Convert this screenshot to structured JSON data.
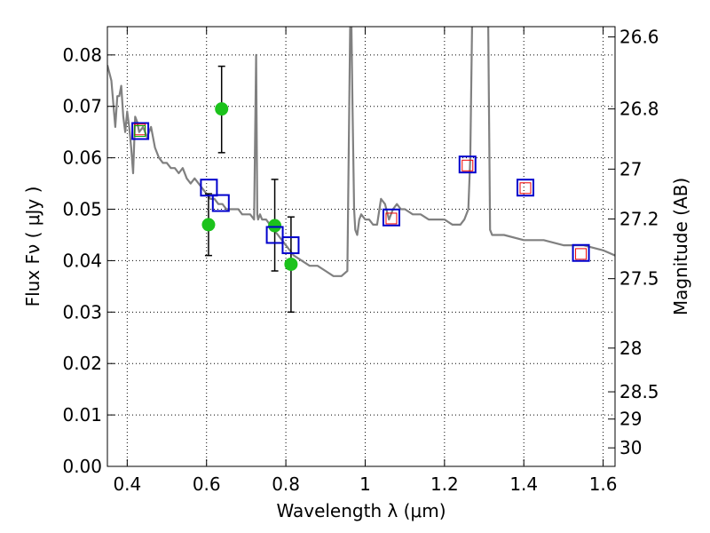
{
  "chart_data": {
    "type": "scatter",
    "xlabel": "Wavelength  λ (μm)",
    "ylabel": "Flux  Fν  ( μJy )",
    "y2label": "Magnitude (AB)",
    "xlim": [
      0.35,
      1.63
    ],
    "ylim": [
      0.0,
      0.0855
    ],
    "grid": true,
    "x_ticks": [
      0.4,
      0.6,
      0.8,
      1.0,
      1.2,
      1.4,
      1.6
    ],
    "x_tick_labels": [
      "0.4",
      "0.6",
      "0.8",
      "1",
      "1.2",
      "1.4",
      "1.6"
    ],
    "y_ticks": [
      0.0,
      0.01,
      0.02,
      0.03,
      0.04,
      0.05,
      0.06,
      0.07,
      0.08
    ],
    "y_tick_labels": [
      "0.00",
      "0.01",
      "0.02",
      "0.03",
      "0.04",
      "0.05",
      "0.06",
      "0.07",
      "0.08"
    ],
    "y2_ticks": [
      {
        "mag": "26.6",
        "flux": 0.0835
      },
      {
        "mag": "26.8",
        "flux": 0.0695
      },
      {
        "mag": "27",
        "flux": 0.0578
      },
      {
        "mag": "27.2",
        "flux": 0.0481
      },
      {
        "mag": "27.5",
        "flux": 0.0365
      },
      {
        "mag": "28",
        "flux": 0.023
      },
      {
        "mag": "28.5",
        "flux": 0.0145
      },
      {
        "mag": "29",
        "flux": 0.0092
      },
      {
        "mag": "30",
        "flux": 0.0036
      }
    ],
    "series": [
      {
        "kind": "line",
        "color": "#808080",
        "x": [
          0.35,
          0.36,
          0.37,
          0.375,
          0.38,
          0.385,
          0.39,
          0.395,
          0.4,
          0.405,
          0.41,
          0.415,
          0.42,
          0.425,
          0.43,
          0.44,
          0.45,
          0.46,
          0.47,
          0.48,
          0.49,
          0.5,
          0.51,
          0.52,
          0.53,
          0.54,
          0.55,
          0.56,
          0.57,
          0.58,
          0.59,
          0.6,
          0.61,
          0.62,
          0.63,
          0.64,
          0.65,
          0.66,
          0.67,
          0.68,
          0.69,
          0.7,
          0.71,
          0.72,
          0.725,
          0.728,
          0.73,
          0.735,
          0.74,
          0.75,
          0.76,
          0.78,
          0.8,
          0.82,
          0.84,
          0.86,
          0.88,
          0.9,
          0.92,
          0.94,
          0.955,
          0.962,
          0.965,
          0.968,
          0.972,
          0.975,
          0.98,
          0.985,
          0.99,
          1.0,
          1.01,
          1.02,
          1.03,
          1.04,
          1.05,
          1.06,
          1.07,
          1.08,
          1.09,
          1.1,
          1.12,
          1.14,
          1.16,
          1.18,
          1.2,
          1.22,
          1.24,
          1.25,
          1.26,
          1.265,
          1.27,
          1.275,
          1.28,
          1.29,
          1.3,
          1.305,
          1.31,
          1.315,
          1.32,
          1.33,
          1.35,
          1.4,
          1.45,
          1.5,
          1.55,
          1.6,
          1.63
        ],
        "y": [
          0.078,
          0.075,
          0.066,
          0.072,
          0.072,
          0.074,
          0.068,
          0.065,
          0.069,
          0.066,
          0.062,
          0.057,
          0.068,
          0.067,
          0.065,
          0.066,
          0.064,
          0.066,
          0.062,
          0.06,
          0.059,
          0.059,
          0.058,
          0.058,
          0.057,
          0.058,
          0.056,
          0.055,
          0.056,
          0.055,
          0.054,
          0.053,
          0.052,
          0.052,
          0.051,
          0.051,
          0.05,
          0.05,
          0.05,
          0.05,
          0.049,
          0.049,
          0.049,
          0.048,
          0.08,
          0.049,
          0.048,
          0.049,
          0.048,
          0.048,
          0.047,
          0.045,
          0.043,
          0.041,
          0.04,
          0.039,
          0.039,
          0.038,
          0.037,
          0.037,
          0.038,
          0.085,
          0.088,
          0.07,
          0.05,
          0.046,
          0.045,
          0.048,
          0.049,
          0.048,
          0.048,
          0.047,
          0.047,
          0.052,
          0.051,
          0.048,
          0.05,
          0.051,
          0.05,
          0.05,
          0.049,
          0.049,
          0.048,
          0.048,
          0.048,
          0.047,
          0.047,
          0.048,
          0.05,
          0.06,
          0.088,
          0.088,
          0.088,
          0.088,
          0.088,
          0.088,
          0.088,
          0.046,
          0.045,
          0.045,
          0.045,
          0.044,
          0.044,
          0.043,
          0.043,
          0.042,
          0.041
        ]
      },
      {
        "kind": "points",
        "marker": "circle",
        "color": "#1cc21c",
        "x": [
          0.605,
          0.638,
          0.772,
          0.813
        ],
        "y": [
          0.047,
          0.0695,
          0.0468,
          0.0393
        ],
        "yerr_low": [
          0.041,
          0.061,
          0.038,
          0.03
        ],
        "yerr_high": [
          0.053,
          0.0778,
          0.0558,
          0.0485
        ]
      },
      {
        "kind": "points",
        "marker": "square-blue",
        "color": "#0000cc",
        "x": [
          0.433,
          0.606,
          0.636,
          0.772,
          0.812,
          1.066,
          1.258,
          1.404,
          1.544
        ],
        "y": [
          0.0652,
          0.0542,
          0.0512,
          0.045,
          0.043,
          0.0484,
          0.0587,
          0.0542,
          0.0415
        ]
      },
      {
        "kind": "points",
        "marker": "square-red",
        "color": "#ee0000",
        "x": [
          0.432,
          1.066,
          1.258,
          1.404,
          1.544
        ],
        "y": [
          0.0655,
          0.0482,
          0.0585,
          0.0541,
          0.0413
        ]
      },
      {
        "kind": "points",
        "marker": "square-green",
        "color": "#00aa00",
        "x": [
          0.432
        ],
        "y": [
          0.0652
        ]
      }
    ]
  }
}
